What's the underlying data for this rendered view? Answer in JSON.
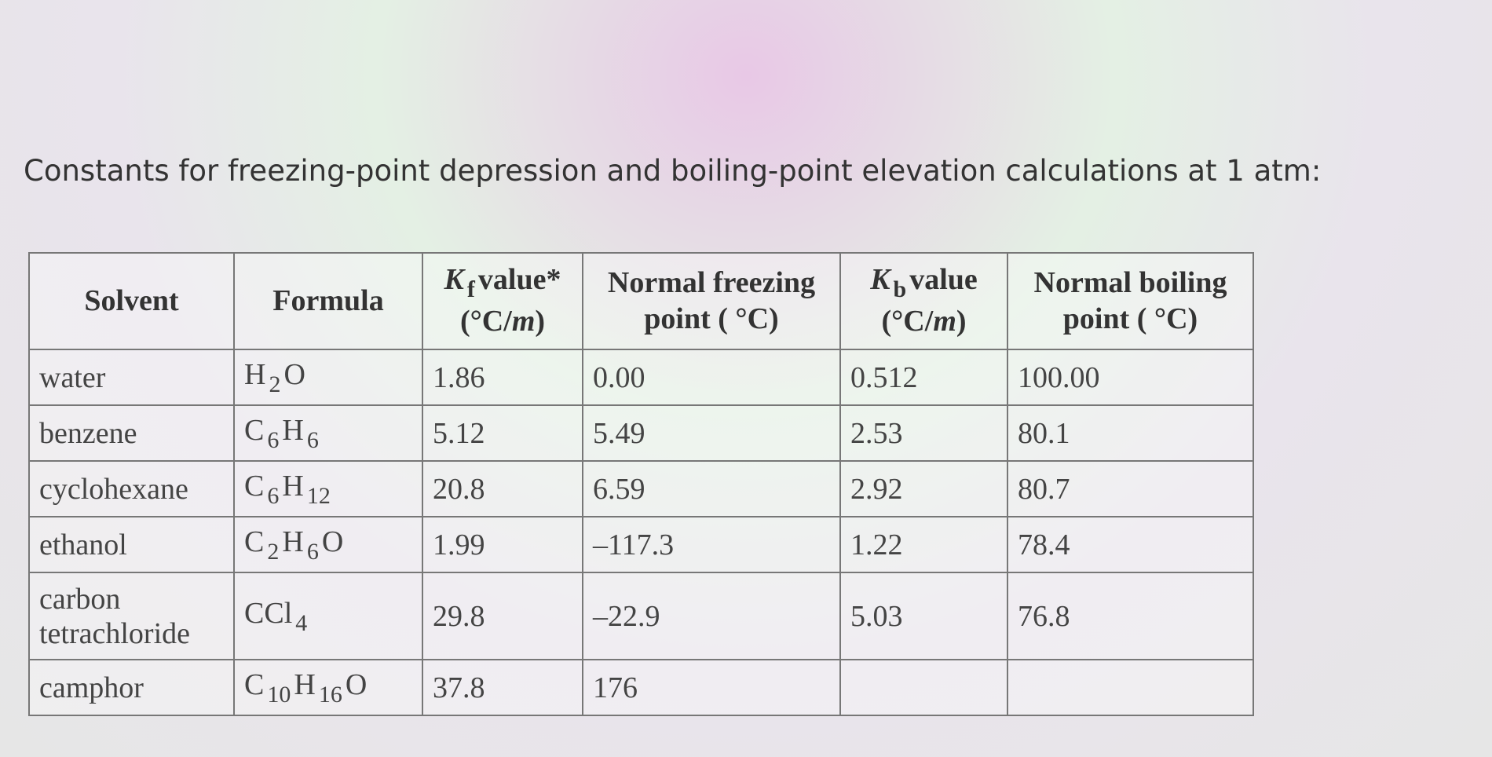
{
  "title": "Constants for freezing-point depression and boiling-point elevation calculations at 1 atm:",
  "table": {
    "header": [
      {
        "text": "Solvent"
      },
      {
        "text": "Formula"
      },
      {
        "symbol": "K",
        "sub": "f",
        "text": "value*",
        "unit": [
          "(°C/",
          "m",
          ")"
        ]
      },
      {
        "line1": "Normal freezing",
        "line2": "point ( °C)"
      },
      {
        "symbol": "K",
        "sub": "b",
        "text": "value",
        "unit": [
          "(°C/",
          "m",
          ")"
        ]
      },
      {
        "line1": "Normal boiling",
        "line2": "point ( °C)"
      }
    ],
    "rows": [
      [
        "water",
        [
          {
            "el": "H",
            "sub": "2"
          },
          {
            "el": "O"
          }
        ],
        "1.86",
        "0.00",
        "0.512",
        "100.00"
      ],
      [
        "benzene",
        [
          {
            "el": "C",
            "sub": "6"
          },
          {
            "el": "H",
            "sub": "6"
          }
        ],
        "5.12",
        "5.49",
        "2.53",
        "80.1"
      ],
      [
        "cyclohexane",
        [
          {
            "el": "C",
            "sub": "6"
          },
          {
            "el": "H",
            "sub": "12"
          }
        ],
        "20.8",
        "6.59",
        "2.92",
        "80.7"
      ],
      [
        "ethanol",
        [
          {
            "el": "C",
            "sub": "2"
          },
          {
            "el": "H",
            "sub": "6"
          },
          {
            "el": "O"
          }
        ],
        "1.99",
        "–117.3",
        "1.22",
        "78.4"
      ],
      [
        "carbon tetrachloride",
        [
          {
            "el": "CCl",
            "sub": "4"
          }
        ],
        "29.8",
        "–22.9",
        "5.03",
        "76.8"
      ],
      [
        "camphor",
        [
          {
            "el": "C",
            "sub": "10"
          },
          {
            "el": "H",
            "sub": "16"
          },
          {
            "el": "O"
          }
        ],
        "37.8",
        "176",
        null,
        null
      ]
    ]
  }
}
